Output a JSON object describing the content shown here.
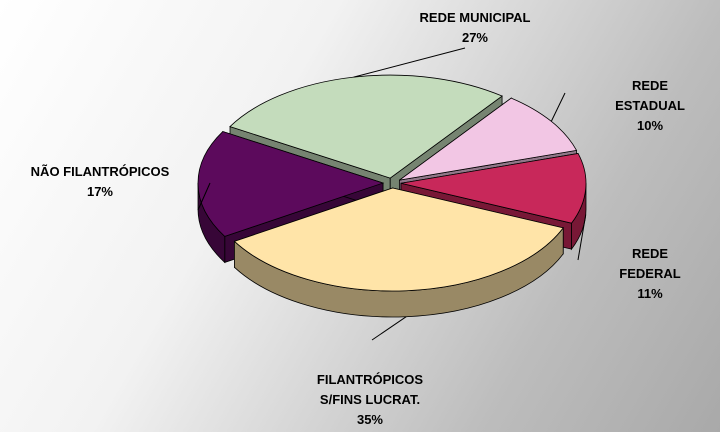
{
  "chart_data": {
    "type": "pie",
    "categories": [
      "REDE MUNICIPAL",
      "REDE ESTADUAL",
      "REDE FEDERAL",
      "FILANTRÓPICOS\nS/FINS LUCRAT.",
      "NÃO FILANTRÓPICOS"
    ],
    "values": [
      27,
      10,
      11,
      35,
      17
    ],
    "value_labels": [
      "27%",
      "10%",
      "11%",
      "35%",
      "17%"
    ],
    "colors": [
      "#c4dcbc",
      "#f2c6e4",
      "#c8285a",
      "#ffe4a8",
      "#5c0a5c"
    ]
  }
}
